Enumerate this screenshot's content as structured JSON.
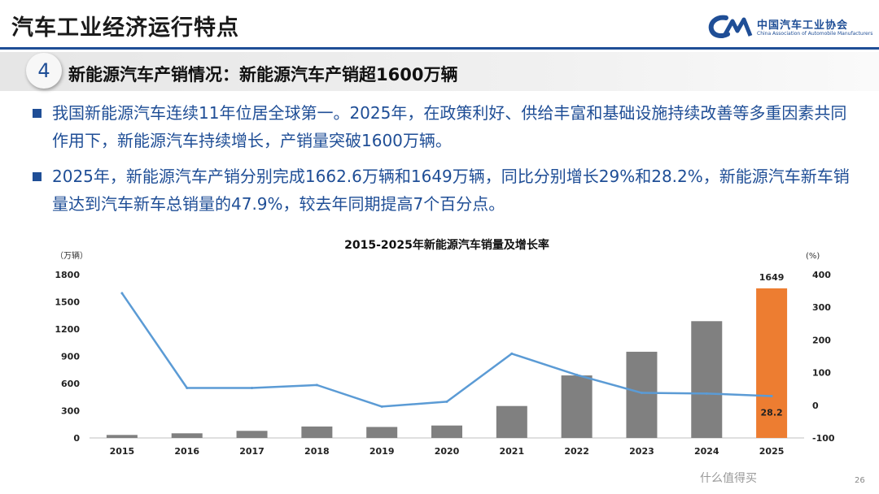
{
  "header": {
    "title": "汽车工业经济运行特点",
    "logo_cn": "中国汽车工业协会",
    "logo_en": "China Association of Automobile Manufacturers"
  },
  "section": {
    "number": "4",
    "title": "新能源汽车产销情况：新能源汽车产销超1600万辆"
  },
  "bullets": [
    "我国新能源汽车连续11年位居全球第一。2025年，在政策利好、供给丰富和基础设施持续改善等多重因素共同作用下，新能源汽车持续增长，产销量突破1600万辆。",
    "2025年，新能源汽车产销分别完成1662.6万辆和1649万辆，同比分别增长29%和28.2%，新能源汽车新车销量达到汽车新车总销量的47.9%，较去年同期提高7个百分点。"
  ],
  "colors": {
    "accent": "#1f4e96",
    "bar": "#808080",
    "bar_highlight": "#ed7d31",
    "line": "#5b9bd5"
  },
  "chart_data": {
    "type": "bar",
    "title": "2015-2025年新能源汽车销量及增长率",
    "ylabel": "（万辆）",
    "y2label": "(%)",
    "categories": [
      "2015",
      "2016",
      "2017",
      "2018",
      "2019",
      "2020",
      "2021",
      "2022",
      "2023",
      "2024",
      "2025"
    ],
    "ylim": [
      0,
      1800
    ],
    "yticks": [
      "0",
      "300",
      "600",
      "900",
      "1200",
      "1500",
      "1800"
    ],
    "y2lim": [
      -100,
      400
    ],
    "y2ticks": [
      "-100",
      "0",
      "100",
      "200",
      "300",
      "400"
    ],
    "series": [
      {
        "type": "bar",
        "values": [
          33,
          51,
          78,
          126,
          121,
          137,
          352,
          689,
          950,
          1287,
          1649
        ],
        "highlight_index": 10,
        "labels": [
          "",
          "",
          "",
          "",
          "",
          "",
          "",
          "",
          "",
          "",
          "1649"
        ]
      },
      {
        "type": "line",
        "axis": "right",
        "values": [
          343,
          53,
          53,
          62,
          -4,
          11,
          158,
          93,
          38,
          36,
          28.2
        ],
        "labels": [
          "",
          "",
          "",
          "",
          "",
          "",
          "",
          "",
          "",
          "",
          "28.2"
        ]
      }
    ],
    "grid": false,
    "legend": "none"
  },
  "watermark": "什么值得买",
  "page_number": "26"
}
